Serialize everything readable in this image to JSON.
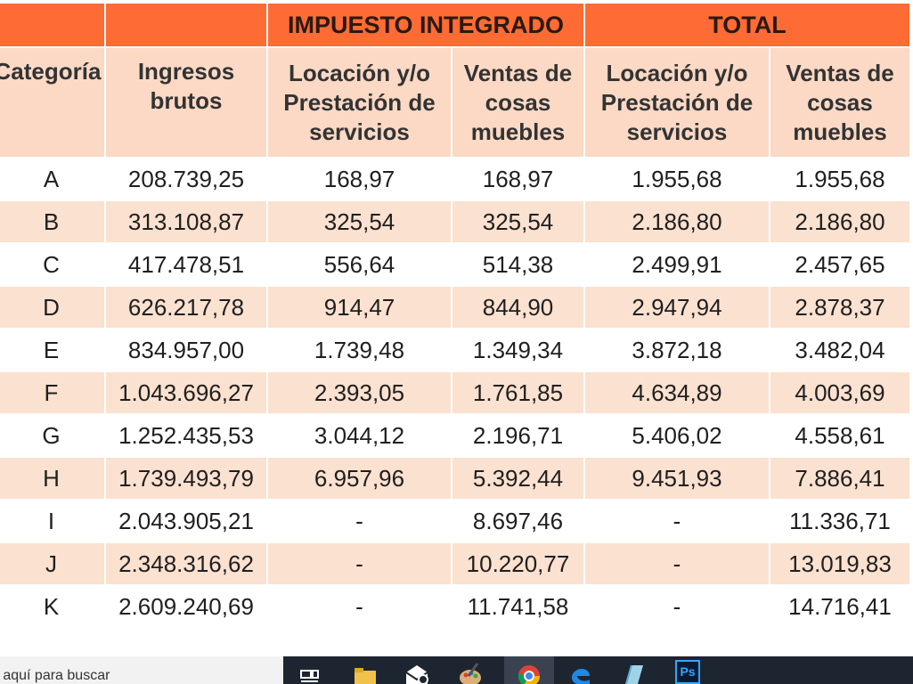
{
  "table": {
    "group_headers": {
      "impuesto": "IMPUESTO INTEGRADO",
      "total": "TOTAL"
    },
    "columns": {
      "categoria": "Categoría",
      "ingresos": "Ingresos brutos",
      "locacion": "Locación y/o Prestación de servicios",
      "ventas": "Ventas de cosas muebles"
    },
    "rows": [
      {
        "cat": "A",
        "ingresos": "208.739,25",
        "imp_loc": "168,97",
        "imp_ven": "168,97",
        "tot_loc": "1.955,68",
        "tot_ven": "1.955,68"
      },
      {
        "cat": "B",
        "ingresos": "313.108,87",
        "imp_loc": "325,54",
        "imp_ven": "325,54",
        "tot_loc": "2.186,80",
        "tot_ven": "2.186,80"
      },
      {
        "cat": "C",
        "ingresos": "417.478,51",
        "imp_loc": "556,64",
        "imp_ven": "514,38",
        "tot_loc": "2.499,91",
        "tot_ven": "2.457,65"
      },
      {
        "cat": "D",
        "ingresos": "626.217,78",
        "imp_loc": "914,47",
        "imp_ven": "844,90",
        "tot_loc": "2.947,94",
        "tot_ven": "2.878,37"
      },
      {
        "cat": "E",
        "ingresos": "834.957,00",
        "imp_loc": "1.739,48",
        "imp_ven": "1.349,34",
        "tot_loc": "3.872,18",
        "tot_ven": "3.482,04"
      },
      {
        "cat": "F",
        "ingresos": "1.043.696,27",
        "imp_loc": "2.393,05",
        "imp_ven": "1.761,85",
        "tot_loc": "4.634,89",
        "tot_ven": "4.003,69"
      },
      {
        "cat": "G",
        "ingresos": "1.252.435,53",
        "imp_loc": "3.044,12",
        "imp_ven": "2.196,71",
        "tot_loc": "5.406,02",
        "tot_ven": "4.558,61"
      },
      {
        "cat": "H",
        "ingresos": "1.739.493,79",
        "imp_loc": "6.957,96",
        "imp_ven": "5.392,44",
        "tot_loc": "9.451,93",
        "tot_ven": "7.886,41"
      },
      {
        "cat": "I",
        "ingresos": "2.043.905,21",
        "imp_loc": "-",
        "imp_ven": "8.697,46",
        "tot_loc": "-",
        "tot_ven": "11.336,71"
      },
      {
        "cat": "J",
        "ingresos": "2.348.316,62",
        "imp_loc": "-",
        "imp_ven": "10.220,77",
        "tot_loc": "-",
        "tot_ven": "13.019,83"
      },
      {
        "cat": "K",
        "ingresos": "2.609.240,69",
        "imp_loc": "-",
        "imp_ven": "11.741,58",
        "tot_loc": "-",
        "tot_ven": "14.716,41"
      }
    ]
  },
  "taskbar": {
    "search_text": "e aquí para buscar",
    "icons": [
      "task-view-icon",
      "file-explorer-icon",
      "mail-icon",
      "paint-icon",
      "chrome-icon",
      "edge-icon",
      "notepad-icon",
      "photoshop-icon"
    ],
    "photoshop_label": "Ps"
  }
}
